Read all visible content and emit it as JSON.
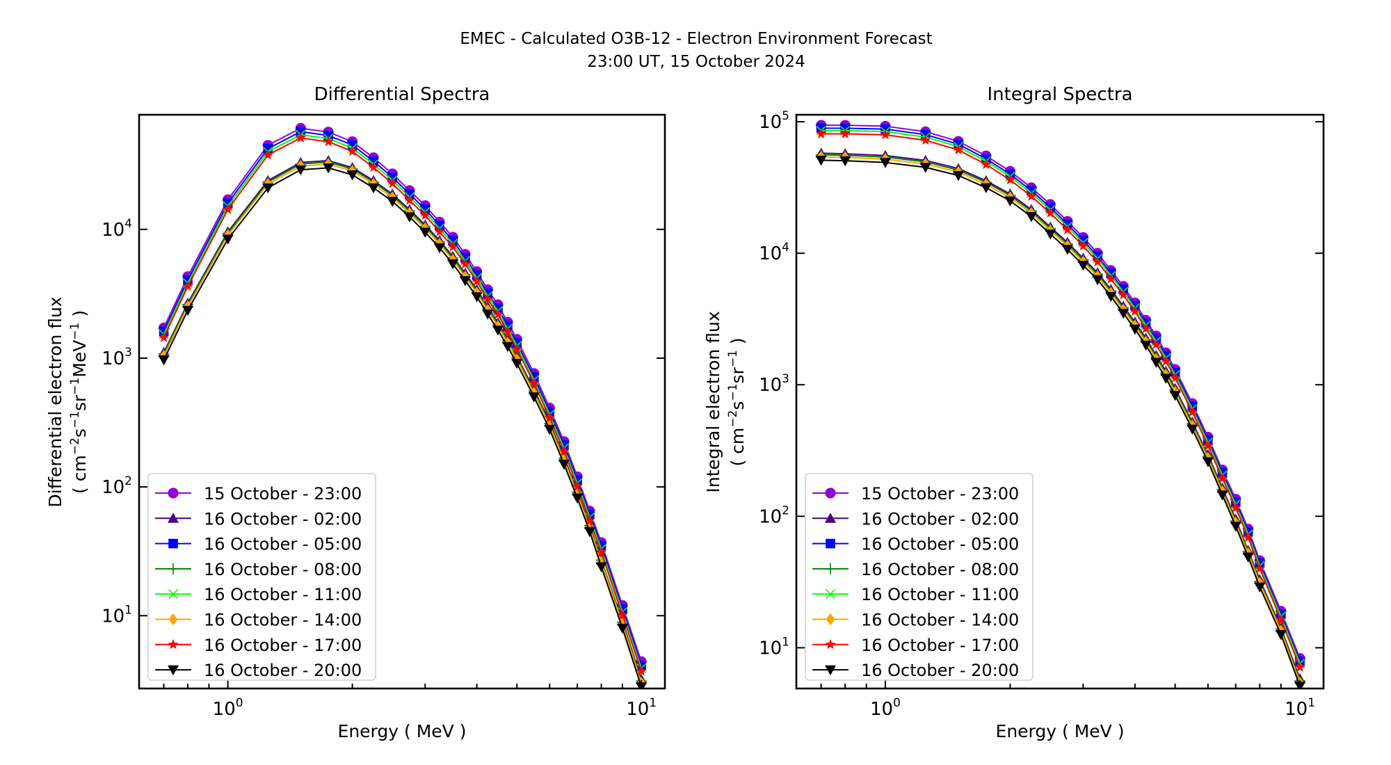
{
  "figure": {
    "suptitle_line1": "EMEC - Calculated O3B-12 - Electron Environment Forecast",
    "suptitle_line2": "23:00 UT, 15 October 2024"
  },
  "chart_data": [
    {
      "type": "line",
      "title": "Differential Spectra",
      "xlabel": "Energy ( MeV )",
      "ylabel_line1": "Differential electron flux",
      "ylabel_line2_parts": [
        "( cm",
        "−2",
        "s",
        "−1",
        "sr",
        "−1",
        "MeV",
        "−1",
        " )"
      ],
      "xscale": "log",
      "yscale": "log",
      "xlim": [
        0.61,
        11.4
      ],
      "ylim": [
        2.72,
        77600
      ],
      "xticks": [
        {
          "value": 1,
          "base": "10",
          "exp": "0"
        },
        {
          "value": 10,
          "base": "10",
          "exp": "1"
        }
      ],
      "yticks": [
        {
          "value": 10,
          "base": "10",
          "exp": "1"
        },
        {
          "value": 100,
          "base": "10",
          "exp": "2"
        },
        {
          "value": 1000,
          "base": "10",
          "exp": "3"
        },
        {
          "value": 10000,
          "base": "10",
          "exp": "4"
        }
      ],
      "grid": false,
      "legend_position": "lower-left",
      "x": [
        0.7,
        0.8,
        1.0,
        1.25,
        1.5,
        1.75,
        2.0,
        2.25,
        2.5,
        2.75,
        3.0,
        3.25,
        3.5,
        3.75,
        4.0,
        4.25,
        4.5,
        4.75,
        5.0,
        5.5,
        6.0,
        6.5,
        7.0,
        7.5,
        8.0,
        9.0,
        10.0
      ],
      "series": [
        {
          "name": "15 October - 23:00",
          "color": "#9400d3",
          "marker": "circle",
          "values": [
            1720,
            4300,
            17000,
            45000,
            61000,
            57000,
            48000,
            36000,
            27000,
            20000,
            15300,
            11400,
            8700,
            6400,
            4700,
            3400,
            2600,
            1900,
            1400,
            760,
            410,
            225,
            120,
            65,
            37,
            12,
            4.4
          ]
        },
        {
          "name": "16 October - 02:00",
          "color": "#4b0082",
          "marker": "triangle-up",
          "values": [
            1106,
            2679,
            9576,
            23940,
            33060,
            34200,
            30210,
            23940,
            18810,
            14250,
            10830,
            8208,
            6156,
            4560,
            3420,
            2508,
            1881,
            1402,
            1037,
            570,
            319,
            171,
            93,
            51,
            27,
            9.1,
            3.2
          ]
        },
        {
          "name": "16 October - 05:00",
          "color": "#0000ff",
          "marker": "square",
          "values": [
            1617,
            4042,
            15980,
            42300,
            57340,
            53580,
            45120,
            33840,
            25380,
            18800,
            14382,
            10716,
            8178,
            6016,
            4418,
            3196,
            2444,
            1786,
            1316,
            714,
            385,
            212,
            113,
            61,
            35,
            11.3,
            4.1
          ]
        },
        {
          "name": "16 October - 08:00",
          "color": "#008000",
          "marker": "plus",
          "values": [
            1077,
            2609,
            9324,
            23310,
            32190,
            33300,
            29415,
            23310,
            18315,
            13875,
            10545,
            7992,
            5994,
            4440,
            3330,
            2442,
            1832,
            1365,
            1010,
            555,
            311,
            167,
            91,
            50,
            27,
            8.9,
            3.1
          ]
        },
        {
          "name": "16 October - 11:00",
          "color": "#00ff00",
          "marker": "x",
          "values": [
            1531,
            3827,
            15130,
            40050,
            54290,
            50730,
            42720,
            32040,
            24030,
            17800,
            13617,
            10146,
            7743,
            5696,
            4183,
            3026,
            2314,
            1691,
            1246,
            676,
            365,
            200,
            107,
            58,
            33,
            10.7,
            3.9
          ]
        },
        {
          "name": "16 October - 14:00",
          "color": "#ffa500",
          "marker": "diamond",
          "values": [
            1038,
            2515,
            8988,
            22470,
            31030,
            32100,
            28355,
            22470,
            17655,
            13375,
            10165,
            7704,
            5778,
            4280,
            3210,
            2354,
            1766,
            1316,
            974,
            535,
            300,
            161,
            88,
            48,
            26,
            8.6,
            3.0
          ]
        },
        {
          "name": "16 October - 17:00",
          "color": "#ff0000",
          "marker": "star",
          "values": [
            1445,
            3612,
            14280,
            37800,
            51240,
            47880,
            40320,
            30240,
            22680,
            16800,
            12852,
            9576,
            7308,
            5376,
            3948,
            2856,
            2184,
            1596,
            1176,
            638,
            344,
            189,
            101,
            55,
            31,
            10.1,
            3.7
          ]
        },
        {
          "name": "16 October - 20:00",
          "color": "#000000",
          "marker": "triangle-down",
          "values": [
            970,
            2350,
            8400,
            21000,
            29000,
            30000,
            26500,
            21000,
            16500,
            12500,
            9500,
            7200,
            5400,
            4000,
            3000,
            2200,
            1650,
            1230,
            910,
            500,
            280,
            150,
            82,
            45,
            24,
            8,
            2.8
          ]
        }
      ]
    },
    {
      "type": "line",
      "title": "Integral Spectra",
      "xlabel": "Energy ( MeV )",
      "ylabel_line1": "Integral electron flux",
      "ylabel_line2_parts": [
        "( cm",
        "−2",
        "s",
        "−1",
        "sr",
        "−1",
        "",
        "",
        " )"
      ],
      "xscale": "log",
      "yscale": "log",
      "xlim": [
        0.61,
        11.4
      ],
      "ylim": [
        4.9,
        113000
      ],
      "xticks": [
        {
          "value": 1,
          "base": "10",
          "exp": "0"
        },
        {
          "value": 10,
          "base": "10",
          "exp": "1"
        }
      ],
      "yticks": [
        {
          "value": 10,
          "base": "10",
          "exp": "1"
        },
        {
          "value": 100,
          "base": "10",
          "exp": "2"
        },
        {
          "value": 1000,
          "base": "10",
          "exp": "3"
        },
        {
          "value": 10000,
          "base": "10",
          "exp": "4"
        },
        {
          "value": 100000,
          "base": "10",
          "exp": "5"
        }
      ],
      "grid": false,
      "legend_position": "lower-left",
      "x": [
        0.7,
        0.8,
        1.0,
        1.25,
        1.5,
        1.75,
        2.0,
        2.25,
        2.5,
        2.75,
        3.0,
        3.25,
        3.5,
        3.75,
        4.0,
        4.25,
        4.5,
        4.75,
        5.0,
        5.5,
        6.0,
        6.5,
        7.0,
        7.5,
        8.0,
        9.0,
        10.0
      ],
      "series": [
        {
          "name": "15 October - 23:00",
          "color": "#9400d3",
          "marker": "circle",
          "values": [
            94000,
            94000,
            92500,
            84000,
            71000,
            55000,
            42000,
            31500,
            23500,
            17500,
            13200,
            10000,
            7400,
            5600,
            4200,
            3100,
            2350,
            1750,
            1310,
            720,
            400,
            225,
            135,
            80,
            46,
            19,
            8.3
          ]
        },
        {
          "name": "16 October - 02:00",
          "color": "#4b0082",
          "marker": "triangle-up",
          "values": [
            57630,
            57065,
            55370,
            50850,
            44070,
            35595,
            28250,
            21470,
            15820,
            12091,
            9153,
            7119,
            5311,
            3955,
            2995,
            2260,
            1672,
            1266,
            938,
            520,
            294,
            164,
            95,
            55,
            33,
            14.2,
            5.8
          ]
        },
        {
          "name": "16 October - 05:00",
          "color": "#0000ff",
          "marker": "square",
          "values": [
            89300,
            89300,
            87875,
            79800,
            67450,
            52250,
            39900,
            29925,
            22325,
            16625,
            12540,
            9500,
            7030,
            5320,
            3990,
            2945,
            2233,
            1663,
            1245,
            684,
            380,
            214,
            128,
            76,
            44,
            18,
            7.9
          ]
        },
        {
          "name": "16 October - 08:00",
          "color": "#008000",
          "marker": "plus",
          "values": [
            56100,
            55550,
            53900,
            49500,
            42900,
            34650,
            27500,
            20900,
            15400,
            11770,
            8910,
            6930,
            5170,
            3850,
            2915,
            2200,
            1628,
            1232,
            913,
            506,
            286,
            160,
            92,
            54,
            32,
            13.9,
            5.6
          ]
        },
        {
          "name": "16 October - 11:00",
          "color": "#00ff00",
          "marker": "x",
          "values": [
            85540,
            85540,
            84175,
            76440,
            64610,
            50050,
            38220,
            28665,
            21385,
            15925,
            12012,
            9100,
            6734,
            5096,
            3822,
            2821,
            2139,
            1593,
            1192,
            655,
            364,
            205,
            123,
            73,
            42,
            17.3,
            7.6
          ]
        },
        {
          "name": "16 October - 14:00",
          "color": "#ffa500",
          "marker": "diamond",
          "values": [
            54060,
            53530,
            51940,
            47700,
            41340,
            33390,
            26500,
            20140,
            14840,
            11342,
            8586,
            6678,
            4982,
            3710,
            2809,
            2120,
            1569,
            1187,
            880,
            488,
            276,
            154,
            89,
            52,
            31,
            13.4,
            5.4
          ]
        },
        {
          "name": "16 October - 17:00",
          "color": "#ff0000",
          "marker": "star",
          "values": [
            80840,
            80840,
            79550,
            72240,
            61060,
            47300,
            36120,
            27090,
            20210,
            15050,
            11352,
            8600,
            6364,
            4816,
            3612,
            2666,
            2021,
            1505,
            1127,
            619,
            344,
            194,
            116,
            69,
            40,
            16.3,
            7.1
          ]
        },
        {
          "name": "16 October - 20:00",
          "color": "#000000",
          "marker": "triangle-down",
          "values": [
            51000,
            50500,
            49000,
            45000,
            39000,
            31500,
            25000,
            19000,
            14000,
            10700,
            8100,
            6300,
            4700,
            3500,
            2650,
            2000,
            1480,
            1120,
            830,
            460,
            260,
            145,
            84,
            49,
            29,
            12.6,
            5.1
          ]
        }
      ]
    }
  ]
}
